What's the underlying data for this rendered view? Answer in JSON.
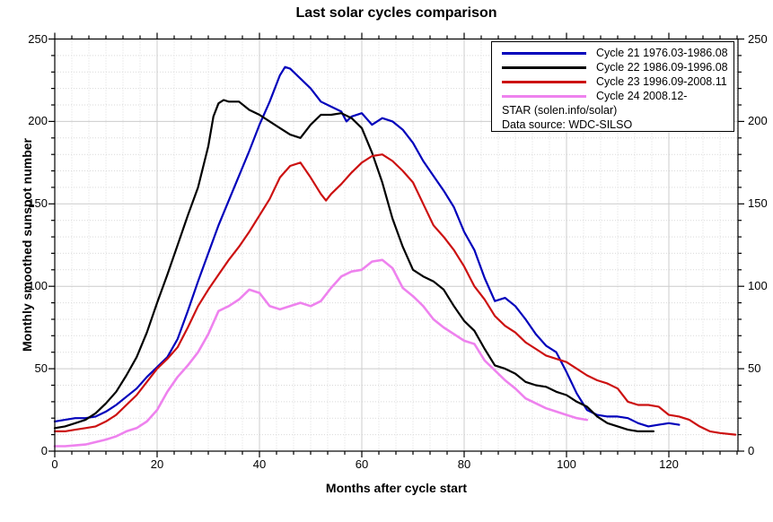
{
  "title": "Last solar cycles comparison",
  "legend": {
    "notes": [
      "STAR (solen.info/solar)",
      "Data source: WDC-SILSO"
    ]
  },
  "chart_data": {
    "type": "line",
    "title": "Last solar cycles comparison",
    "xlabel": "Months after cycle start",
    "ylabel": "Monthly smoothed sunspot number",
    "xlim": [
      0,
      133.5
    ],
    "ylim": [
      0,
      250
    ],
    "grid": true,
    "legend_position": "top-right",
    "x_major_ticks": [
      0,
      20,
      40,
      60,
      80,
      100,
      120
    ],
    "x_minor_step": 3.3333,
    "y_major_ticks": [
      0,
      50,
      100,
      150,
      200,
      250
    ],
    "y_minor_step": 10,
    "series": [
      {
        "key": "cycle-21",
        "name": "Cycle 21 1976.03-1986.08",
        "color": "#0000bb",
        "width": 2.2,
        "points": [
          [
            0,
            18
          ],
          [
            2,
            19
          ],
          [
            4,
            20
          ],
          [
            6,
            20
          ],
          [
            8,
            21
          ],
          [
            10,
            24
          ],
          [
            12,
            28
          ],
          [
            14,
            33
          ],
          [
            16,
            38
          ],
          [
            18,
            45
          ],
          [
            20,
            51
          ],
          [
            22,
            57
          ],
          [
            24,
            68
          ],
          [
            26,
            85
          ],
          [
            28,
            103
          ],
          [
            30,
            120
          ],
          [
            32,
            137
          ],
          [
            34,
            152
          ],
          [
            36,
            167
          ],
          [
            38,
            182
          ],
          [
            40,
            198
          ],
          [
            42,
            212
          ],
          [
            44,
            228
          ],
          [
            45,
            233
          ],
          [
            46,
            232
          ],
          [
            48,
            226
          ],
          [
            50,
            220
          ],
          [
            52,
            212
          ],
          [
            54,
            209
          ],
          [
            56,
            206
          ],
          [
            57,
            200
          ],
          [
            58,
            203
          ],
          [
            60,
            205
          ],
          [
            62,
            198
          ],
          [
            64,
            202
          ],
          [
            66,
            200
          ],
          [
            68,
            195
          ],
          [
            70,
            187
          ],
          [
            72,
            176
          ],
          [
            74,
            167
          ],
          [
            76,
            158
          ],
          [
            78,
            148
          ],
          [
            80,
            133
          ],
          [
            82,
            122
          ],
          [
            84,
            105
          ],
          [
            86,
            91
          ],
          [
            88,
            93
          ],
          [
            90,
            88
          ],
          [
            92,
            80
          ],
          [
            94,
            71
          ],
          [
            96,
            64
          ],
          [
            98,
            60
          ],
          [
            100,
            48
          ],
          [
            102,
            35
          ],
          [
            104,
            25
          ],
          [
            106,
            22
          ],
          [
            108,
            21
          ],
          [
            110,
            21
          ],
          [
            112,
            20
          ],
          [
            114,
            17
          ],
          [
            116,
            15
          ],
          [
            118,
            16
          ],
          [
            120,
            17
          ],
          [
            122,
            16
          ]
        ]
      },
      {
        "key": "cycle-22",
        "name": "Cycle 22 1986.09-1996.08",
        "color": "#000000",
        "width": 2.2,
        "points": [
          [
            0,
            14
          ],
          [
            2,
            15
          ],
          [
            4,
            17
          ],
          [
            6,
            19
          ],
          [
            8,
            23
          ],
          [
            10,
            29
          ],
          [
            12,
            36
          ],
          [
            14,
            46
          ],
          [
            16,
            57
          ],
          [
            18,
            72
          ],
          [
            20,
            90
          ],
          [
            22,
            107
          ],
          [
            24,
            125
          ],
          [
            26,
            143
          ],
          [
            28,
            160
          ],
          [
            30,
            185
          ],
          [
            31,
            203
          ],
          [
            32,
            211
          ],
          [
            33,
            213
          ],
          [
            34,
            212
          ],
          [
            36,
            212
          ],
          [
            38,
            207
          ],
          [
            40,
            204
          ],
          [
            42,
            200
          ],
          [
            44,
            196
          ],
          [
            46,
            192
          ],
          [
            48,
            190
          ],
          [
            50,
            198
          ],
          [
            52,
            204
          ],
          [
            54,
            204
          ],
          [
            56,
            205
          ],
          [
            58,
            202
          ],
          [
            60,
            196
          ],
          [
            62,
            181
          ],
          [
            64,
            163
          ],
          [
            66,
            141
          ],
          [
            68,
            124
          ],
          [
            70,
            110
          ],
          [
            72,
            106
          ],
          [
            74,
            103
          ],
          [
            76,
            98
          ],
          [
            78,
            88
          ],
          [
            80,
            79
          ],
          [
            82,
            73
          ],
          [
            84,
            62
          ],
          [
            86,
            52
          ],
          [
            88,
            50
          ],
          [
            90,
            47
          ],
          [
            92,
            42
          ],
          [
            94,
            40
          ],
          [
            96,
            39
          ],
          [
            98,
            36
          ],
          [
            100,
            34
          ],
          [
            102,
            30
          ],
          [
            104,
            27
          ],
          [
            106,
            21
          ],
          [
            108,
            17
          ],
          [
            110,
            15
          ],
          [
            112,
            13
          ],
          [
            114,
            12
          ],
          [
            117,
            12
          ]
        ]
      },
      {
        "key": "cycle-23",
        "name": "Cycle 23 1996.09-2008.11",
        "color": "#cc1111",
        "width": 2.2,
        "points": [
          [
            0,
            12
          ],
          [
            2,
            12
          ],
          [
            4,
            13
          ],
          [
            6,
            14
          ],
          [
            8,
            15
          ],
          [
            10,
            18
          ],
          [
            12,
            22
          ],
          [
            14,
            28
          ],
          [
            16,
            34
          ],
          [
            18,
            42
          ],
          [
            20,
            50
          ],
          [
            22,
            56
          ],
          [
            24,
            63
          ],
          [
            26,
            75
          ],
          [
            28,
            88
          ],
          [
            30,
            98
          ],
          [
            32,
            107
          ],
          [
            34,
            116
          ],
          [
            36,
            124
          ],
          [
            38,
            133
          ],
          [
            40,
            143
          ],
          [
            42,
            153
          ],
          [
            44,
            166
          ],
          [
            46,
            173
          ],
          [
            48,
            175
          ],
          [
            50,
            166
          ],
          [
            52,
            156
          ],
          [
            53,
            152
          ],
          [
            54,
            156
          ],
          [
            56,
            162
          ],
          [
            58,
            169
          ],
          [
            60,
            175
          ],
          [
            62,
            179
          ],
          [
            64,
            180
          ],
          [
            66,
            176
          ],
          [
            68,
            170
          ],
          [
            70,
            163
          ],
          [
            72,
            150
          ],
          [
            74,
            137
          ],
          [
            76,
            130
          ],
          [
            78,
            122
          ],
          [
            80,
            112
          ],
          [
            82,
            100
          ],
          [
            84,
            92
          ],
          [
            86,
            82
          ],
          [
            88,
            76
          ],
          [
            90,
            72
          ],
          [
            92,
            66
          ],
          [
            94,
            62
          ],
          [
            96,
            58
          ],
          [
            98,
            56
          ],
          [
            100,
            54
          ],
          [
            102,
            50
          ],
          [
            104,
            46
          ],
          [
            106,
            43
          ],
          [
            108,
            41
          ],
          [
            110,
            38
          ],
          [
            112,
            30
          ],
          [
            114,
            28
          ],
          [
            116,
            28
          ],
          [
            118,
            27
          ],
          [
            120,
            22
          ],
          [
            122,
            21
          ],
          [
            124,
            19
          ],
          [
            126,
            15
          ],
          [
            128,
            12
          ],
          [
            130,
            11
          ],
          [
            133,
            10
          ]
        ]
      },
      {
        "key": "cycle-24",
        "name": "Cycle 24 2008.12-",
        "color": "#ee82ee",
        "width": 2.6,
        "points": [
          [
            0,
            3
          ],
          [
            2,
            3
          ],
          [
            4,
            3.5
          ],
          [
            6,
            4
          ],
          [
            8,
            5.5
          ],
          [
            10,
            7
          ],
          [
            12,
            9
          ],
          [
            14,
            12
          ],
          [
            16,
            14
          ],
          [
            18,
            18
          ],
          [
            20,
            25
          ],
          [
            22,
            36
          ],
          [
            24,
            45
          ],
          [
            26,
            52
          ],
          [
            28,
            60
          ],
          [
            30,
            71
          ],
          [
            32,
            85
          ],
          [
            34,
            88
          ],
          [
            36,
            92
          ],
          [
            38,
            98
          ],
          [
            40,
            96
          ],
          [
            42,
            88
          ],
          [
            44,
            86
          ],
          [
            46,
            88
          ],
          [
            48,
            90
          ],
          [
            50,
            88
          ],
          [
            52,
            91
          ],
          [
            54,
            99
          ],
          [
            56,
            106
          ],
          [
            58,
            109
          ],
          [
            60,
            110
          ],
          [
            62,
            115
          ],
          [
            64,
            116
          ],
          [
            66,
            111
          ],
          [
            68,
            99
          ],
          [
            70,
            94
          ],
          [
            72,
            88
          ],
          [
            74,
            80
          ],
          [
            76,
            75
          ],
          [
            78,
            71
          ],
          [
            80,
            67
          ],
          [
            82,
            65
          ],
          [
            84,
            55
          ],
          [
            86,
            49
          ],
          [
            88,
            43
          ],
          [
            90,
            38
          ],
          [
            92,
            32
          ],
          [
            94,
            29
          ],
          [
            96,
            26
          ],
          [
            98,
            24
          ],
          [
            100,
            22
          ],
          [
            102,
            20
          ],
          [
            104,
            19
          ]
        ]
      }
    ]
  }
}
